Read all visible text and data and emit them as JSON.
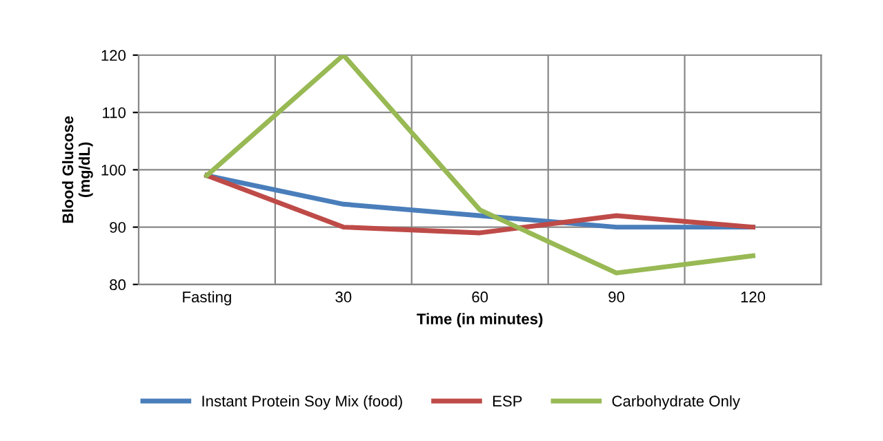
{
  "chart_data": {
    "type": "line",
    "xlabel": "Time (in minutes)",
    "ylabel": "Blood Glucose\n(mg/dL)",
    "categories": [
      "Fasting",
      "30",
      "60",
      "90",
      "120"
    ],
    "series": [
      {
        "name": "Instant Protein Soy Mix (food)",
        "color": "#4a7ebb",
        "values": [
          99,
          94,
          92,
          90,
          90
        ]
      },
      {
        "name": "ESP",
        "color": "#be4b48",
        "values": [
          99,
          90,
          89,
          92,
          90
        ]
      },
      {
        "name": "Carbohydrate Only",
        "color": "#98b954",
        "values": [
          99,
          120,
          93,
          82,
          85
        ]
      }
    ],
    "ylim": [
      80,
      120
    ],
    "yticks": [
      80,
      90,
      100,
      110,
      120
    ],
    "grid": true,
    "legend": "bottom",
    "marker": "none",
    "line_style": "solid"
  }
}
